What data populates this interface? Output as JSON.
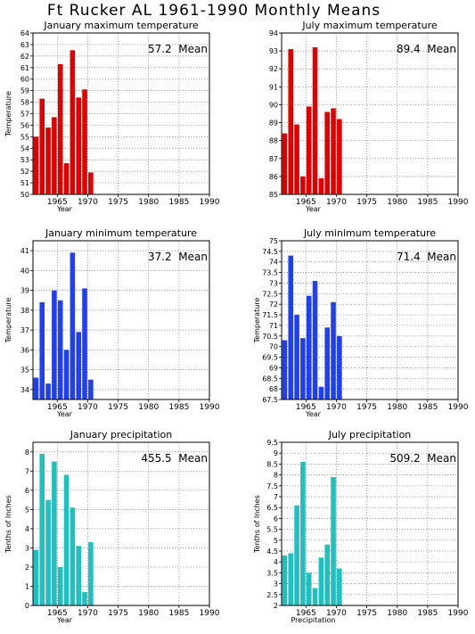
{
  "page": {
    "title": "Ft Rucker AL  1961-1990 Monthly Means"
  },
  "colors": {
    "max": "#e00000",
    "min": "#2040f0",
    "precip": "#20c0c0"
  },
  "chart_data": [
    {
      "id": "jan-max",
      "type": "bar",
      "title": "January maximum temperature",
      "xlabel": "Year",
      "ylabel": "Temperature",
      "annotation": "57.2  Mean",
      "xlim": [
        1961,
        1990
      ],
      "ylim": [
        50,
        64
      ],
      "xticks": [
        1965,
        1970,
        1975,
        1980,
        1985,
        1990
      ],
      "yticks": [
        50,
        51,
        52,
        53,
        54,
        55,
        56,
        57,
        58,
        59,
        60,
        61,
        62,
        63,
        64
      ],
      "x": [
        1961,
        1962,
        1963,
        1964,
        1965,
        1966,
        1967,
        1968,
        1969,
        1970
      ],
      "values": [
        55.0,
        58.3,
        55.8,
        56.7,
        61.3,
        52.7,
        62.5,
        58.4,
        59.1,
        51.9
      ],
      "color": "max"
    },
    {
      "id": "jul-max",
      "type": "bar",
      "title": "July maximum temperature",
      "xlabel": "Year",
      "ylabel": "",
      "annotation": "89.4  Mean",
      "xlim": [
        1961,
        1990
      ],
      "ylim": [
        85,
        94
      ],
      "xticks": [
        1965,
        1970,
        1975,
        1980,
        1985,
        1990
      ],
      "yticks": [
        85,
        86,
        87,
        88,
        89,
        90,
        91,
        92,
        93,
        94
      ],
      "x": [
        1961,
        1962,
        1963,
        1964,
        1965,
        1966,
        1967,
        1968,
        1969,
        1970
      ],
      "values": [
        88.4,
        93.1,
        88.9,
        86.0,
        89.9,
        93.2,
        85.9,
        89.6,
        89.8,
        89.2
      ],
      "color": "max"
    },
    {
      "id": "jan-min",
      "type": "bar",
      "title": "January minimum temperature",
      "xlabel": "Year",
      "ylabel": "Temperature",
      "annotation": "37.2  Mean",
      "xlim": [
        1961,
        1990
      ],
      "ylim": [
        33.5,
        41.5
      ],
      "xticks": [
        1965,
        1970,
        1975,
        1980,
        1985,
        1990
      ],
      "yticks": [
        34,
        35,
        36,
        37,
        38,
        39,
        40,
        41
      ],
      "x": [
        1961,
        1962,
        1963,
        1964,
        1965,
        1966,
        1967,
        1968,
        1969,
        1970
      ],
      "values": [
        34.6,
        38.4,
        34.3,
        39.0,
        38.5,
        36.0,
        40.9,
        36.9,
        39.1,
        34.5
      ],
      "color": "min"
    },
    {
      "id": "jul-min",
      "type": "bar",
      "title": "July minimum temperature",
      "xlabel": "Year",
      "ylabel": "Temperature",
      "annotation": "71.4  Mean",
      "xlim": [
        1961,
        1990
      ],
      "ylim": [
        67.5,
        75
      ],
      "xticks": [
        1965,
        1970,
        1975,
        1980,
        1985,
        1990
      ],
      "yticks": [
        67.5,
        68,
        68.5,
        69,
        69.5,
        70,
        70.5,
        71,
        71.5,
        72,
        72.5,
        73,
        73.5,
        74,
        74.5,
        75
      ],
      "x": [
        1961,
        1962,
        1963,
        1964,
        1965,
        1966,
        1967,
        1968,
        1969,
        1970
      ],
      "values": [
        70.3,
        74.3,
        71.5,
        70.4,
        72.4,
        73.1,
        68.1,
        70.9,
        72.1,
        70.5
      ],
      "color": "min"
    },
    {
      "id": "jan-precip",
      "type": "bar",
      "title": "January precipitation",
      "xlabel": "Year",
      "ylabel": "Tenths of Inches",
      "annotation": "455.5  Mean",
      "xlim": [
        1961,
        1990
      ],
      "ylim": [
        0,
        8.5
      ],
      "xticks": [
        1965,
        1970,
        1975,
        1980,
        1985,
        1990
      ],
      "yticks": [
        0,
        1,
        2,
        3,
        4,
        5,
        6,
        7,
        8
      ],
      "x": [
        1961,
        1962,
        1963,
        1964,
        1965,
        1966,
        1967,
        1968,
        1969,
        1970
      ],
      "values": [
        2.9,
        7.9,
        5.5,
        7.5,
        2.0,
        6.8,
        5.1,
        3.1,
        0.7,
        3.3
      ],
      "color": "precip"
    },
    {
      "id": "jul-precip",
      "type": "bar",
      "title": "July precipitation",
      "xlabel": "Precipitation",
      "ylabel": "Tenths of Inches",
      "annotation": "509.2  Mean",
      "xlim": [
        1961,
        1990
      ],
      "ylim": [
        2,
        9.5
      ],
      "xticks": [
        1965,
        1970,
        1975,
        1980,
        1985,
        1990
      ],
      "yticks": [
        2,
        2.5,
        3,
        3.5,
        4,
        4.5,
        5,
        5.5,
        6,
        6.5,
        7,
        7.5,
        8,
        8.5,
        9,
        9.5
      ],
      "x": [
        1961,
        1962,
        1963,
        1964,
        1965,
        1966,
        1967,
        1968,
        1969,
        1970
      ],
      "values": [
        4.3,
        4.4,
        6.6,
        8.6,
        3.5,
        2.8,
        4.2,
        4.8,
        7.9,
        3.7
      ],
      "color": "precip"
    }
  ]
}
